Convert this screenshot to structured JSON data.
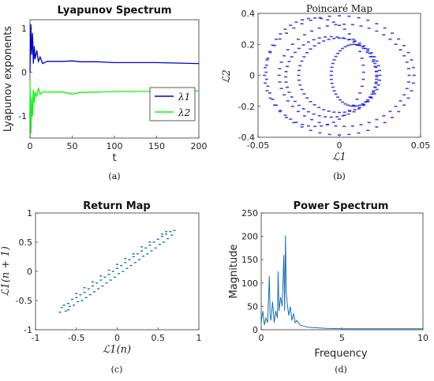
{
  "chart_data": [
    {
      "id": "a",
      "type": "line",
      "title": "Lyapunov Spectrum",
      "xlabel": "t",
      "ylabel": "Lyapunov exponents",
      "caption": "(a)",
      "xlim": [
        0,
        200
      ],
      "ylim": [
        -1.5,
        1.2
      ],
      "xticks": [
        "0",
        "50",
        "100",
        "150",
        "200"
      ],
      "yticks": [
        "1",
        "0",
        "-1"
      ],
      "legend_position": "right-middle",
      "series": [
        {
          "name": "λ1",
          "color": "#0000cc",
          "x": [
            0,
            1,
            2,
            3,
            4,
            5,
            6,
            8,
            10,
            12,
            15,
            20,
            30,
            40,
            50,
            60,
            80,
            100,
            120,
            150,
            175,
            200
          ],
          "y": [
            0.0,
            1.1,
            0.4,
            0.9,
            0.2,
            0.6,
            0.3,
            0.5,
            0.25,
            0.35,
            0.2,
            0.25,
            0.25,
            0.25,
            0.26,
            0.24,
            0.24,
            0.22,
            0.22,
            0.22,
            0.21,
            0.2
          ]
        },
        {
          "name": "λ2",
          "color": "#00ff00",
          "x": [
            0,
            1,
            2,
            3,
            4,
            5,
            6,
            8,
            10,
            12,
            15,
            20,
            30,
            40,
            50,
            60,
            80,
            100,
            120,
            150,
            175,
            200
          ],
          "y": [
            -0.2,
            -1.4,
            -0.6,
            -1.0,
            -0.4,
            -0.7,
            -0.45,
            -0.55,
            -0.35,
            -0.5,
            -0.45,
            -0.45,
            -0.45,
            -0.45,
            -0.5,
            -0.46,
            -0.45,
            -0.44,
            -0.44,
            -0.43,
            -0.43,
            -0.42
          ]
        }
      ]
    },
    {
      "id": "b",
      "type": "scatter",
      "title": "Poincaré Map",
      "xlabel": "ℒ1",
      "ylabel": "ℒ2",
      "caption": "(b)",
      "xlim": [
        -0.05,
        0.05
      ],
      "ylim": [
        -0.4,
        0.4
      ],
      "xticks": [
        "-0.05",
        "0",
        "0.05"
      ],
      "yticks": [
        "0.4",
        "0.2",
        "0",
        "-0.2",
        "-0.4"
      ],
      "color": "#0000dd",
      "rings": [
        {
          "cx": 0.0,
          "cy": 0.0,
          "rx": 0.046,
          "ry": 0.385
        },
        {
          "cx": 0.003,
          "cy": 0.0,
          "rx": 0.04,
          "ry": 0.33
        },
        {
          "cx": -0.015,
          "cy": 0.02,
          "rx": 0.03,
          "ry": 0.35
        },
        {
          "cx": -0.005,
          "cy": -0.01,
          "rx": 0.028,
          "ry": 0.26
        },
        {
          "cx": 0.009,
          "cy": 0.0,
          "rx": 0.014,
          "ry": 0.2
        },
        {
          "cx": 0.0,
          "cy": 0.0,
          "rx": 0.025,
          "ry": 0.24
        }
      ]
    },
    {
      "id": "c",
      "type": "scatter",
      "title": "Return Map",
      "xlabel": "ℒ1(n)",
      "ylabel": "ℒ1(n + 1)",
      "caption": "(c)",
      "xlim": [
        -1,
        1
      ],
      "ylim": [
        -1,
        1
      ],
      "xticks": [
        "-1",
        "-0.5",
        "0",
        "0.5",
        "1"
      ],
      "yticks": [
        "1",
        "0.5",
        "0",
        "-0.5",
        "-1"
      ],
      "color": "#1a6fb5",
      "points": [
        [
          -0.7,
          -0.7
        ],
        [
          -0.68,
          -0.62
        ],
        [
          -0.65,
          -0.58
        ],
        [
          -0.63,
          -0.68
        ],
        [
          -0.6,
          -0.55
        ],
        [
          -0.58,
          -0.6
        ],
        [
          -0.55,
          -0.48
        ],
        [
          -0.53,
          -0.58
        ],
        [
          -0.5,
          -0.45
        ],
        [
          -0.48,
          -0.52
        ],
        [
          -0.45,
          -0.4
        ],
        [
          -0.43,
          -0.5
        ],
        [
          -0.4,
          -0.36
        ],
        [
          -0.38,
          -0.45
        ],
        [
          -0.35,
          -0.3
        ],
        [
          -0.33,
          -0.4
        ],
        [
          -0.3,
          -0.25
        ],
        [
          -0.28,
          -0.35
        ],
        [
          -0.25,
          -0.2
        ],
        [
          -0.23,
          -0.3
        ],
        [
          -0.2,
          -0.15
        ],
        [
          -0.18,
          -0.25
        ],
        [
          -0.15,
          -0.1
        ],
        [
          -0.13,
          -0.2
        ],
        [
          -0.1,
          -0.05
        ],
        [
          -0.08,
          -0.15
        ],
        [
          -0.05,
          0.0
        ],
        [
          -0.03,
          -0.1
        ],
        [
          0.0,
          0.05
        ],
        [
          0.02,
          -0.04
        ],
        [
          0.05,
          0.1
        ],
        [
          0.07,
          0.0
        ],
        [
          0.1,
          0.15
        ],
        [
          0.12,
          0.05
        ],
        [
          0.15,
          0.2
        ],
        [
          0.17,
          0.1
        ],
        [
          0.2,
          0.25
        ],
        [
          0.22,
          0.15
        ],
        [
          0.25,
          0.3
        ],
        [
          0.27,
          0.2
        ],
        [
          0.3,
          0.35
        ],
        [
          0.32,
          0.26
        ],
        [
          0.35,
          0.4
        ],
        [
          0.37,
          0.3
        ],
        [
          0.4,
          0.45
        ],
        [
          0.42,
          0.35
        ],
        [
          0.45,
          0.5
        ],
        [
          0.47,
          0.4
        ],
        [
          0.5,
          0.55
        ],
        [
          0.52,
          0.46
        ],
        [
          0.55,
          0.6
        ],
        [
          0.57,
          0.5
        ],
        [
          0.6,
          0.64
        ],
        [
          0.62,
          0.56
        ],
        [
          0.65,
          0.68
        ],
        [
          0.67,
          0.62
        ],
        [
          0.7,
          0.7
        ],
        [
          -0.6,
          -0.66
        ],
        [
          -0.4,
          -0.28
        ],
        [
          -0.2,
          -0.08
        ],
        [
          0.0,
          0.12
        ],
        [
          0.2,
          0.3
        ],
        [
          0.4,
          0.5
        ],
        [
          0.55,
          0.64
        ],
        [
          -0.5,
          -0.38
        ],
        [
          -0.3,
          -0.18
        ],
        [
          -0.1,
          0.02
        ],
        [
          0.1,
          0.22
        ],
        [
          0.3,
          0.42
        ],
        [
          0.6,
          0.68
        ]
      ]
    },
    {
      "id": "d",
      "type": "line",
      "title": "Power Spectrum",
      "xlabel": "Frequency",
      "ylabel": "Magnitude",
      "caption": "(d)",
      "xlim": [
        0,
        10
      ],
      "ylim": [
        0,
        250
      ],
      "xticks": [
        "0",
        "5",
        "10"
      ],
      "yticks": [
        "250",
        "200",
        "150",
        "100",
        "50",
        "0"
      ],
      "color": "#1a6fb5",
      "x": [
        0,
        0.1,
        0.2,
        0.3,
        0.4,
        0.5,
        0.55,
        0.6,
        0.7,
        0.8,
        0.9,
        1.0,
        1.05,
        1.1,
        1.2,
        1.3,
        1.4,
        1.45,
        1.5,
        1.55,
        1.6,
        1.7,
        1.8,
        1.9,
        2.0,
        2.1,
        2.2,
        2.4,
        2.6,
        2.8,
        3.0,
        3.5,
        4.0,
        5.0,
        6.0,
        7.0,
        8.0,
        9.0,
        10.0
      ],
      "y": [
        15,
        40,
        10,
        25,
        15,
        115,
        30,
        20,
        60,
        15,
        40,
        25,
        125,
        40,
        70,
        50,
        160,
        40,
        202,
        80,
        60,
        30,
        50,
        20,
        35,
        15,
        20,
        10,
        8,
        6,
        5,
        4,
        3,
        2,
        2,
        2,
        2,
        2,
        2
      ]
    }
  ]
}
